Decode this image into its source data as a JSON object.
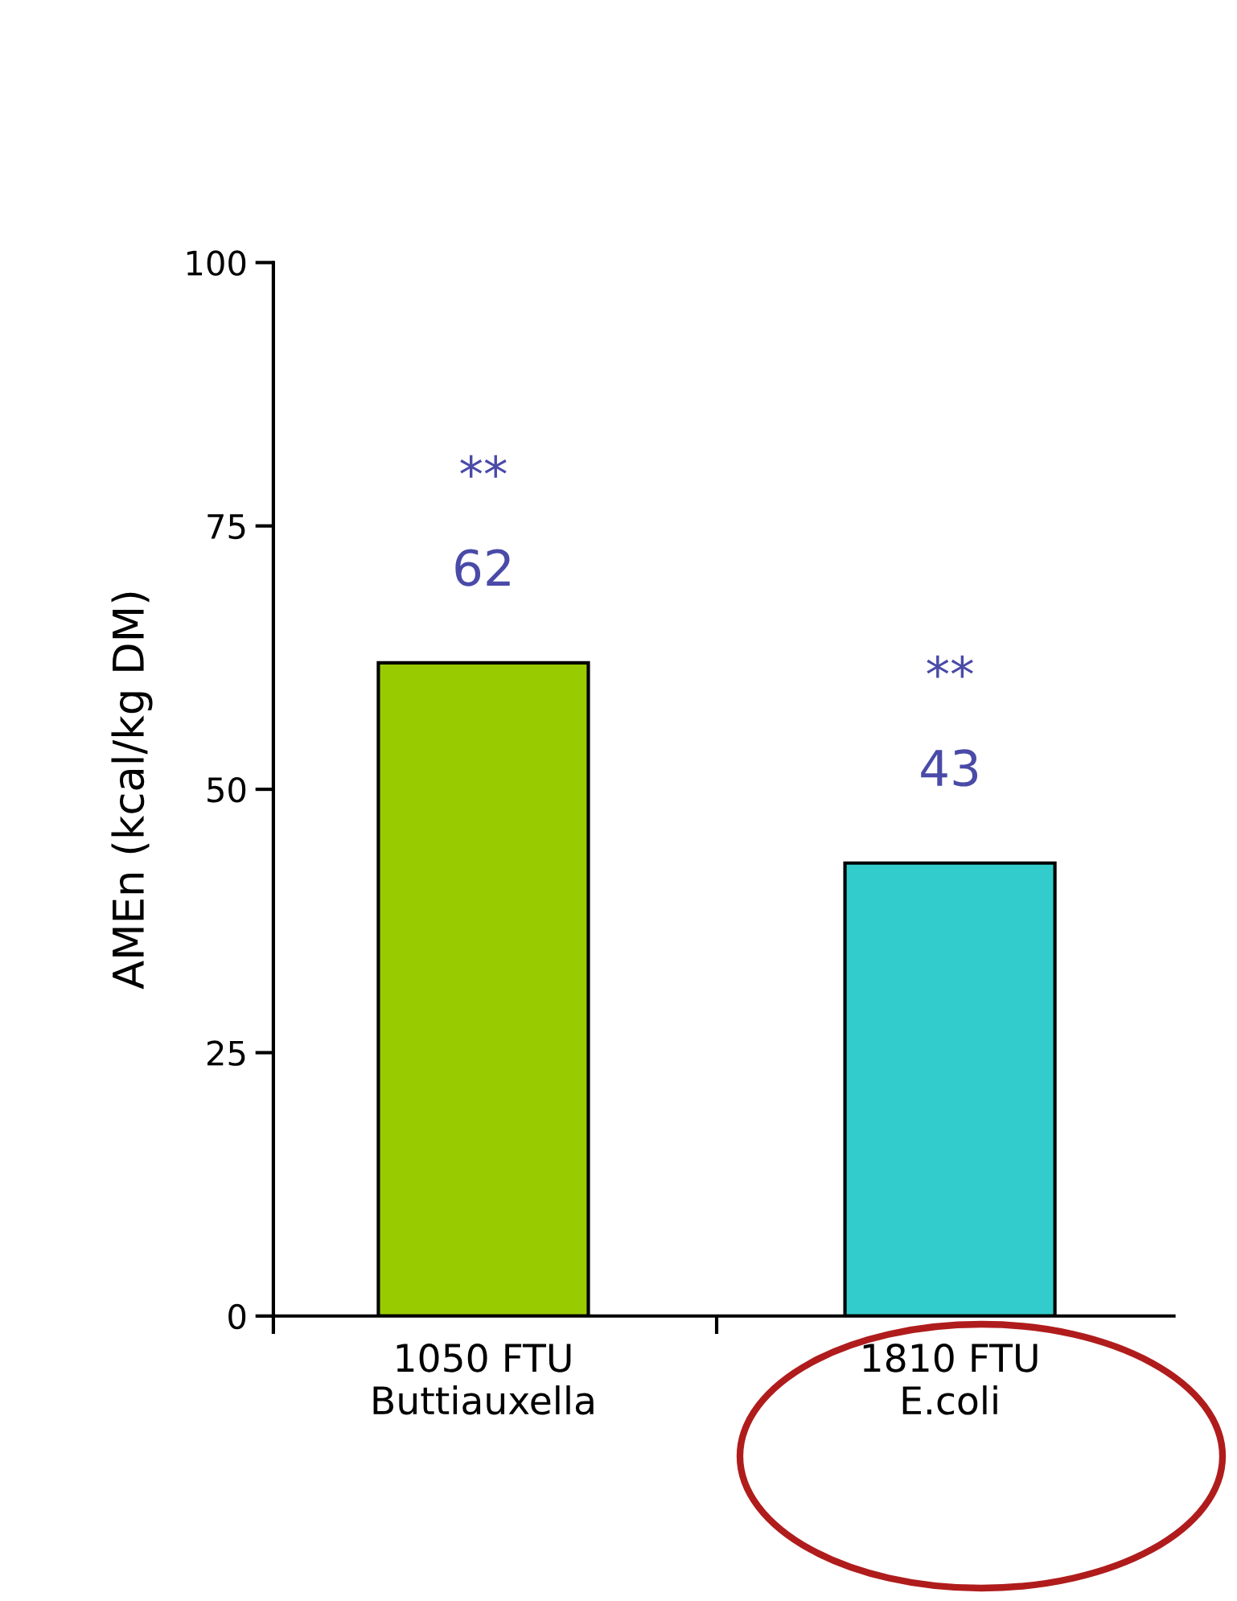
{
  "chart_data": {
    "type": "bar",
    "ylabel": "AMEn (kcal/kg DM)",
    "categories": [
      "1050 FTU\nButtiauxella",
      "1810 FTU\nE.coli"
    ],
    "values": [
      62,
      43
    ],
    "colors": [
      "#99cc00",
      "#33cccc"
    ],
    "data_labels": true,
    "annotations": [
      "**",
      "**"
    ],
    "ylim": [
      0,
      100
    ],
    "yticks": [
      0,
      25,
      50,
      75,
      100
    ],
    "grid": false,
    "legend": false
  }
}
